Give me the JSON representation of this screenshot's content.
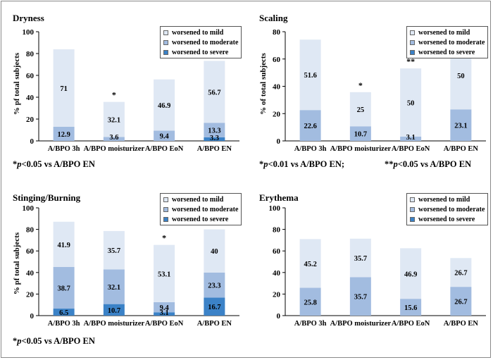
{
  "colors": {
    "mild": "#dfe8f4",
    "moderate": "#a2bce0",
    "severe": "#3b82c7",
    "axis": "#000000"
  },
  "legend": [
    "worsened to mild",
    "worsened to moderate",
    "worsened to severe"
  ],
  "footnotes": {
    "panel0": {
      "marker": "*",
      "p": "p",
      "rest": "<0.05 vs A/BPO EN"
    },
    "panel1a": {
      "marker": "*",
      "p": "p",
      "rest": "<0.01 vs A/BPO EN;"
    },
    "panel1b": {
      "marker": "**",
      "p": "p",
      "rest": "<0.05 vs A/BPO EN"
    },
    "panel2": {
      "marker": "*",
      "p": "p",
      "rest": "<0.05 vs A/BPO EN"
    }
  },
  "chart_data": [
    {
      "type": "bar",
      "stacked": true,
      "title": "Dryness",
      "ylabel": "% pf total subjects",
      "ylim": [
        0,
        100
      ],
      "yticks": [
        0,
        20,
        40,
        60,
        80,
        100
      ],
      "categories": [
        "A/BPO 3h",
        "A/BPO moisturizer",
        "A/BPO EoN",
        "A/BPO EN"
      ],
      "series": [
        {
          "name": "worsened to severe",
          "values": [
            0,
            0,
            0,
            3.3
          ],
          "labels": [
            "",
            "",
            "",
            "3.3"
          ]
        },
        {
          "name": "worsened to moderate",
          "values": [
            12.9,
            3.6,
            9.4,
            13.3
          ],
          "labels": [
            "12.9",
            "3.6",
            "9.4",
            "13.3"
          ]
        },
        {
          "name": "worsened to mild",
          "values": [
            71,
            32.1,
            46.9,
            56.7
          ],
          "labels": [
            "71",
            "32.1",
            "46.9",
            "56.7"
          ]
        }
      ],
      "annotations": [
        "",
        "*",
        "",
        ""
      ],
      "legend_position": "top-right"
    },
    {
      "type": "bar",
      "stacked": true,
      "title": "Scaling",
      "ylabel": "% of total subjects",
      "ylim": [
        0,
        80
      ],
      "yticks": [
        0,
        20,
        40,
        60,
        80
      ],
      "categories": [
        "A/BPO 3h",
        "A/BPO moisturizer",
        "A/BPO EoN",
        "A/BPO EN"
      ],
      "series": [
        {
          "name": "worsened to severe",
          "values": [
            0,
            0,
            0,
            0
          ],
          "labels": [
            "",
            "",
            "",
            ""
          ]
        },
        {
          "name": "worsened to moderate",
          "values": [
            22.6,
            10.7,
            3.1,
            23.1
          ],
          "labels": [
            "22.6",
            "10.7",
            "3.1",
            "23.1"
          ]
        },
        {
          "name": "worsened to mild",
          "values": [
            51.6,
            25,
            50,
            50
          ],
          "labels": [
            "51.6",
            "25",
            "50",
            "50"
          ]
        }
      ],
      "annotations": [
        "",
        "*",
        "**",
        ""
      ],
      "legend_position": "top-right"
    },
    {
      "type": "bar",
      "stacked": true,
      "title": "Stinging/Burning",
      "ylabel": "% pf total subjects",
      "ylim": [
        0,
        100
      ],
      "yticks": [
        0,
        20,
        40,
        60,
        80,
        100
      ],
      "categories": [
        "A/BPO 3h",
        "A/BPO moisturizer",
        "A/BPO EoN",
        "A/BPO EN"
      ],
      "series": [
        {
          "name": "worsened to severe",
          "values": [
            6.5,
            10.7,
            3.1,
            16.7
          ],
          "labels": [
            "6.5",
            "10.7",
            "3.1",
            "16.7"
          ]
        },
        {
          "name": "worsened to moderate",
          "values": [
            38.7,
            32.1,
            9.4,
            23.3
          ],
          "labels": [
            "38.7",
            "32.1",
            "9.4",
            "23.3"
          ]
        },
        {
          "name": "worsened to mild",
          "values": [
            41.9,
            35.7,
            53.1,
            40
          ],
          "labels": [
            "41.9",
            "35.7",
            "53.1",
            "40"
          ]
        }
      ],
      "annotations": [
        "",
        "",
        "*",
        ""
      ],
      "legend_position": "top-right"
    },
    {
      "type": "bar",
      "stacked": true,
      "title": "Erythema",
      "ylabel": "",
      "ylim": [
        0,
        100
      ],
      "yticks": [
        0,
        20,
        40,
        60,
        80,
        100
      ],
      "categories": [
        "A/BPO 3h",
        "A/BPO moisturizer",
        "A/BPO EoN",
        "A/BPO EN"
      ],
      "series": [
        {
          "name": "worsened to severe",
          "values": [
            0,
            0,
            0,
            0
          ],
          "labels": [
            "",
            "",
            "",
            ""
          ]
        },
        {
          "name": "worsened to moderate",
          "values": [
            25.8,
            35.7,
            15.6,
            26.7
          ],
          "labels": [
            "25.8",
            "35.7",
            "15.6",
            "26.7"
          ]
        },
        {
          "name": "worsened to mild",
          "values": [
            45.2,
            35.7,
            46.9,
            26.7
          ],
          "labels": [
            "45.2",
            "35.7",
            "46.9",
            "26.7"
          ]
        }
      ],
      "annotations": [
        "",
        "",
        "",
        ""
      ],
      "legend_position": "top-right"
    }
  ]
}
